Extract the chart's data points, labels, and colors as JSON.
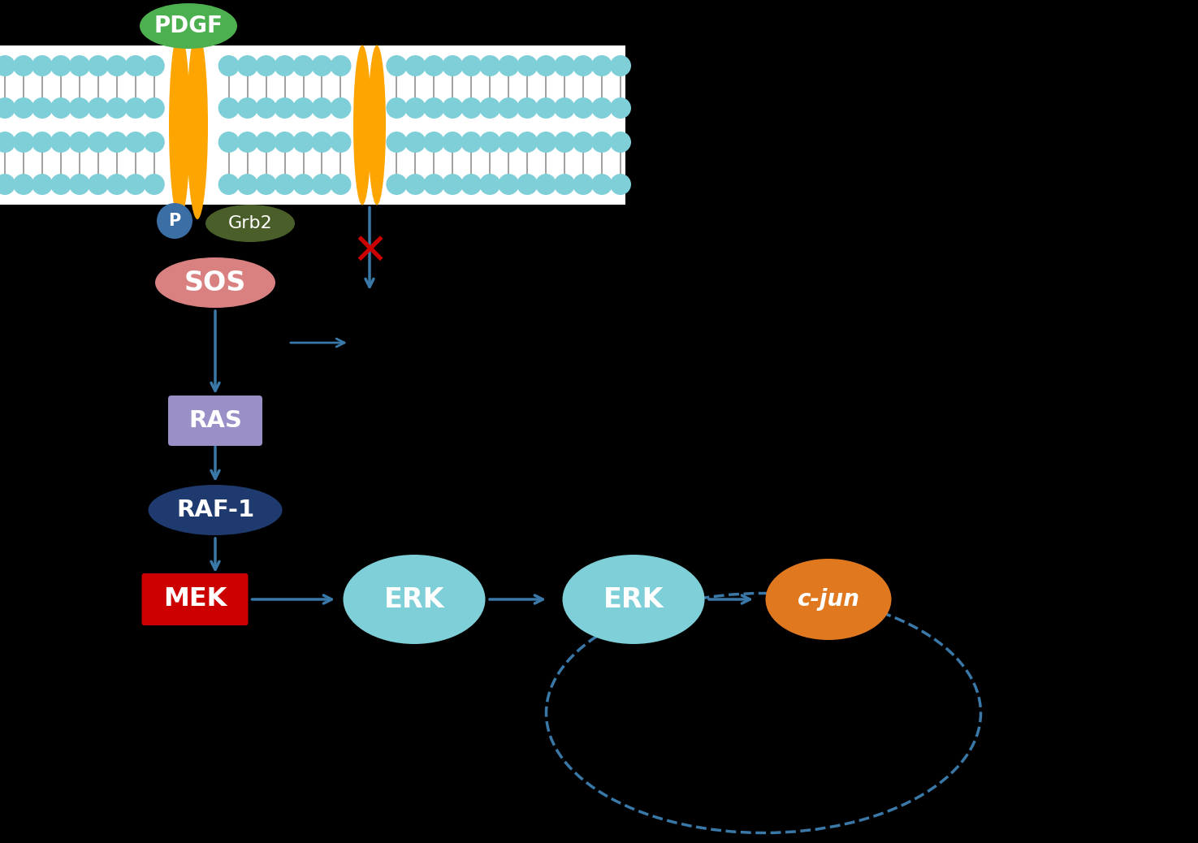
{
  "background_color": "#000000",
  "membrane_color": "#ffffff",
  "bead_color": "#7ecfd8",
  "tail_color": "#999999",
  "receptor_color": "#FFA500",
  "pdgf_color": "#4caf50",
  "pdgf_text": "PDGF",
  "p_color": "#3a6ea5",
  "grb2_color": "#4a5e2a",
  "grb2_text": "Grb2",
  "sos_color": "#d98080",
  "sos_text": "SOS",
  "ras_color": "#9b8fc7",
  "ras_text": "RAS",
  "raf_color": "#1e3a6e",
  "raf_text": "RAF-1",
  "mek_color": "#cc0000",
  "mek_text": "MEK",
  "erk_color": "#7ecfd8",
  "erk_text": "ERK",
  "cjun_color": "#e07820",
  "cjun_text": "c-jun",
  "arrow_color": "#3a78a8",
  "inhibit_color": "#cc0000",
  "nucleus_color": "#3a78a8"
}
